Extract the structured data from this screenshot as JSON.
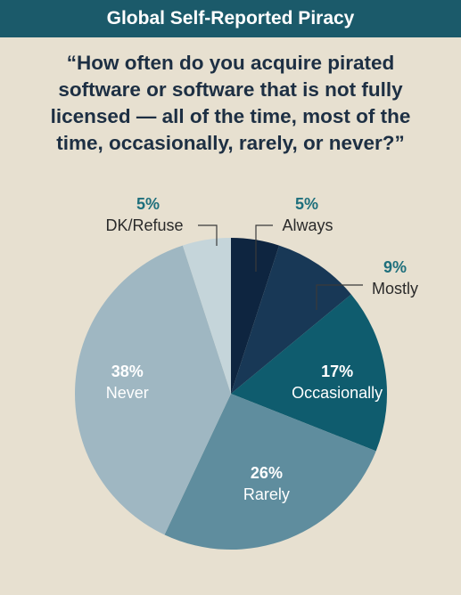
{
  "header": {
    "title": "Global Self-Reported Piracy"
  },
  "question": "“How often do you acquire pirated software or software that is not fully licensed — all of the time, most of the time, occasionally, rarely, or never?”",
  "colors": {
    "header_bg": "#1b5a6a",
    "background": "#e7e0d0",
    "pct_accent": "#1e6f7c",
    "label_dark": "#2a2a2a",
    "label_light": "#ffffff"
  },
  "chart_data": {
    "type": "pie",
    "title": "Global Self-Reported Piracy",
    "unit": "%",
    "slices": [
      {
        "label": "Always",
        "value": 5,
        "display": "5%",
        "color": "#0e2540",
        "label_position": "outside-top"
      },
      {
        "label": "Mostly",
        "value": 9,
        "display": "9%",
        "color": "#183856",
        "label_position": "outside-right"
      },
      {
        "label": "Occasionally",
        "value": 17,
        "display": "17%",
        "color": "#0f5c6e",
        "label_position": "inside"
      },
      {
        "label": "Rarely",
        "value": 26,
        "display": "26%",
        "color": "#5f8d9e",
        "label_position": "inside"
      },
      {
        "label": "Never",
        "value": 38,
        "display": "38%",
        "color": "#9fb7c2",
        "label_position": "inside"
      },
      {
        "label": "DK/Refuse",
        "value": 5,
        "display": "5%",
        "color": "#c5d5da",
        "label_position": "outside-top"
      }
    ]
  }
}
